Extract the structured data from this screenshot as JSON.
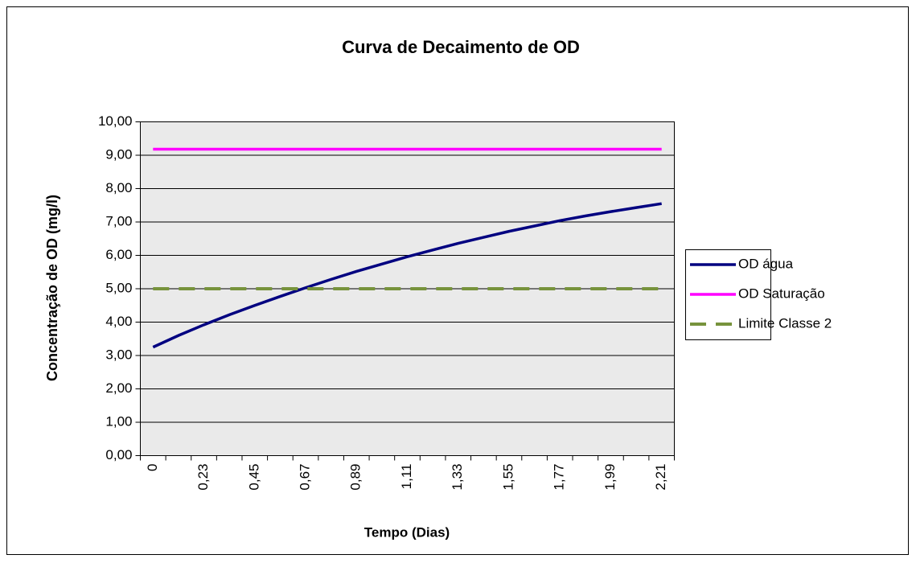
{
  "chart_data": {
    "type": "line",
    "title": "Curva de Decaimento de OD",
    "x_label": "Tempo (Dias)",
    "y_label": "Concentração de OD (mg/l)",
    "categories": [
      "0",
      null,
      "0,23",
      null,
      "0,45",
      null,
      "0,67",
      null,
      "0,89",
      null,
      "1,11",
      null,
      "1,33",
      null,
      "1,55",
      null,
      "1,77",
      null,
      "1,99",
      null,
      "2,21"
    ],
    "series": [
      {
        "name": "OD água",
        "color": "#000080",
        "dash": false,
        "values": [
          3.25,
          3.6,
          3.92,
          4.22,
          4.5,
          4.77,
          5.03,
          5.28,
          5.52,
          5.74,
          5.96,
          6.16,
          6.36,
          6.54,
          6.72,
          6.88,
          7.04,
          7.18,
          7.31,
          7.43,
          7.55
        ]
      },
      {
        "name": "OD Saturação",
        "color": "#ff00ff",
        "dash": false,
        "values": [
          9.18,
          9.18,
          9.18,
          9.18,
          9.18,
          9.18,
          9.18,
          9.18,
          9.18,
          9.18,
          9.18,
          9.18,
          9.18,
          9.18,
          9.18,
          9.18,
          9.18,
          9.18,
          9.18,
          9.18,
          9.18
        ]
      },
      {
        "name": "Limite Classe 2",
        "color": "#77933c",
        "dash": true,
        "values": [
          5,
          5,
          5,
          5,
          5,
          5,
          5,
          5,
          5,
          5,
          5,
          5,
          5,
          5,
          5,
          5,
          5,
          5,
          5,
          5,
          5
        ]
      }
    ],
    "ylim": [
      0,
      10
    ],
    "yticks": [
      {
        "value": 0,
        "label": "0,00"
      },
      {
        "value": 1,
        "label": "1,00"
      },
      {
        "value": 2,
        "label": "2,00"
      },
      {
        "value": 3,
        "label": "3,00"
      },
      {
        "value": 4,
        "label": "4,00"
      },
      {
        "value": 5,
        "label": "5,00"
      },
      {
        "value": 6,
        "label": "6,00"
      },
      {
        "value": 7,
        "label": "7,00"
      },
      {
        "value": 8,
        "label": "8,00"
      },
      {
        "value": 9,
        "label": "9,00"
      },
      {
        "value": 10,
        "label": "10,00"
      }
    ],
    "grid": true,
    "legend": "right"
  }
}
